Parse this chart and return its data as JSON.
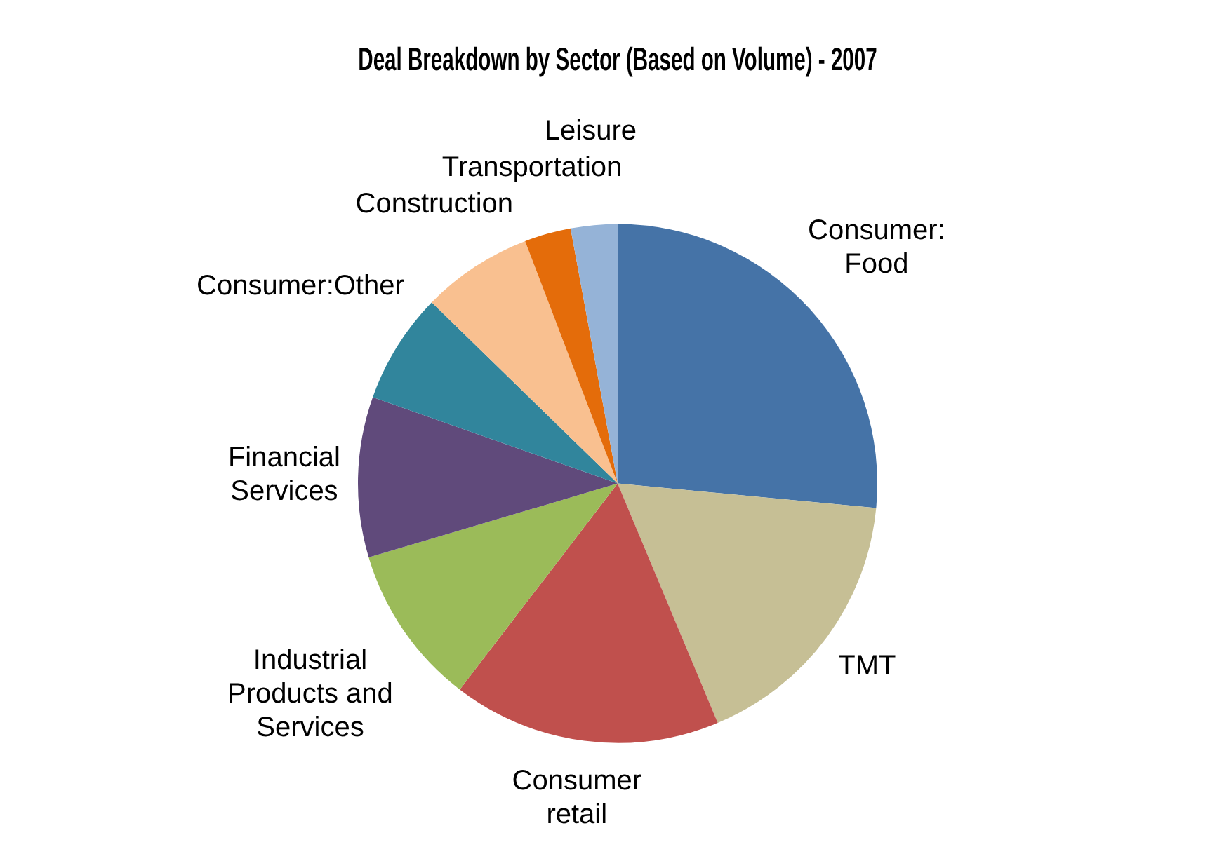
{
  "chart_data": {
    "type": "pie",
    "title": "Deal Breakdown by Sector (Based on Volume) - 2007",
    "categories": [
      "Consumer: Food",
      "TMT",
      "Consumer retail",
      "Industrial Products and Services",
      "Financial Services",
      "Consumer:Other",
      "Construction",
      "Transportation",
      "Leisure"
    ],
    "values": [
      26.5,
      17.2,
      16.7,
      10,
      10,
      6.9,
      6.9,
      2.9,
      2.9
    ],
    "colors": [
      "#4573a7",
      "#c6bf95",
      "#c0504d",
      "#9bbb59",
      "#604a7b",
      "#31859c",
      "#f9c090",
      "#e46c0a",
      "#95b3d7"
    ],
    "legend": false
  }
}
